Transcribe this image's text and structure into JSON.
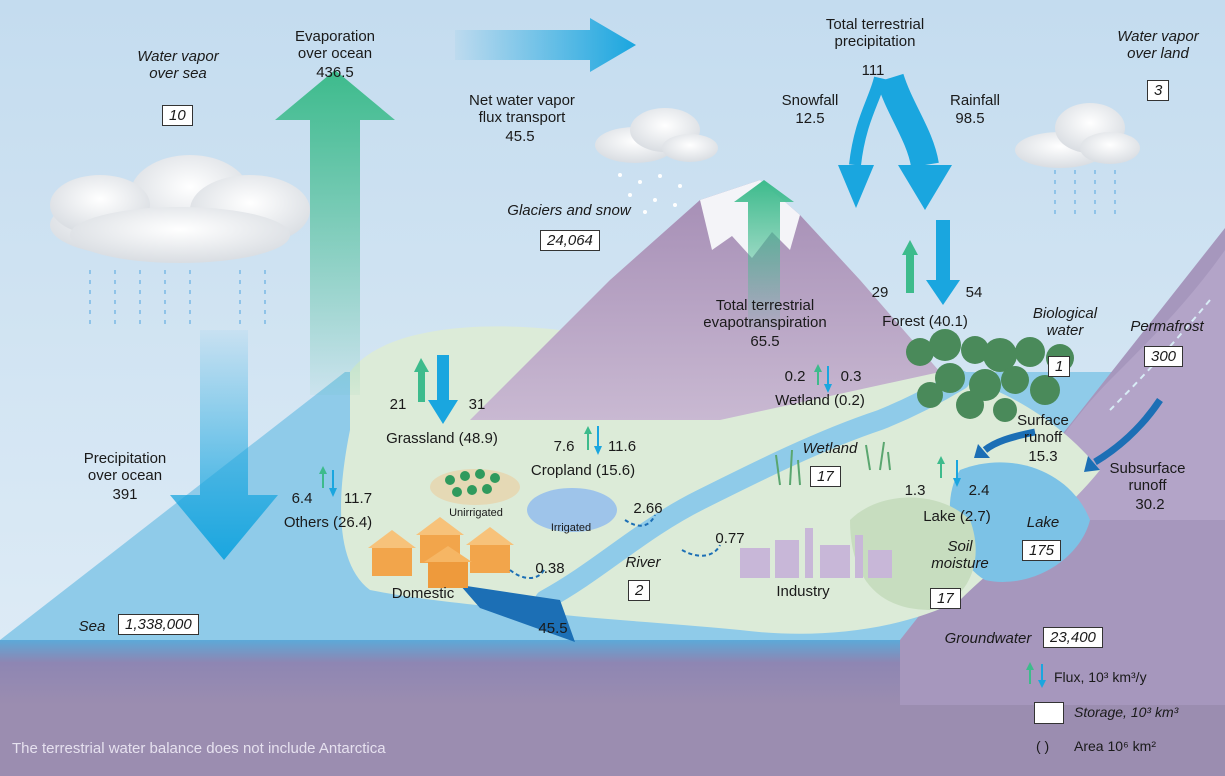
{
  "labels": {
    "vapor_sea": "Water vapor\nover sea",
    "vapor_sea_value": "10",
    "evap_ocean": "Evaporation\nover ocean",
    "evap_ocean_value": "436.5",
    "net_vapor": "Net water vapor\nflux transport",
    "net_vapor_value": "45.5",
    "total_precip": "Total terrestrial\nprecipitation",
    "total_precip_value": "111",
    "snowfall": "Snowfall",
    "snowfall_value": "12.5",
    "rainfall": "Rainfall",
    "rainfall_value": "98.5",
    "vapor_land": "Water vapor\nover land",
    "vapor_land_value": "3",
    "glaciers": "Glaciers and snow",
    "glaciers_value": "24,064",
    "forest_up": "29",
    "forest_down": "54",
    "forest": "Forest (40.1)",
    "biological": "Biological\nwater",
    "biological_value": "1",
    "permafrost": "Permafrost",
    "permafrost_value": "300",
    "total_evapo": "Total terrestrial\nevapotranspiration",
    "total_evapo_value": "65.5",
    "wetland_up": "0.2",
    "wetland_down": "0.3",
    "wetland": "Wetland (0.2)",
    "wetland_storage": "Wetland",
    "wetland_storage_value": "17",
    "surface_runoff": "Surface\nrunoff",
    "surface_runoff_value": "15.3",
    "subsurface_runoff": "Subsurface\nrunoff",
    "subsurface_runoff_value": "30.2",
    "lake_up": "1.3",
    "lake_down": "2.4",
    "lake": "Lake (2.7)",
    "lake_storage": "Lake",
    "lake_storage_value": "175",
    "soil": "Soil\nmoisture",
    "soil_value": "17",
    "groundwater": "Groundwater",
    "groundwater_value": "23,400",
    "grass_up": "21",
    "grass_down": "31",
    "grassland": "Grassland (48.9)",
    "crop_up": "7.6",
    "crop_down": "11.6",
    "cropland": "Cropland (15.6)",
    "others_up": "6.4",
    "others_down": "11.7",
    "others": "Others (26.4)",
    "unirrigated": "Unirrigated",
    "irrigated": "Irrigated",
    "irr_flow": "2.66",
    "ind_flow": "0.77",
    "dom_flow": "0.38",
    "river": "River",
    "river_value": "2",
    "river_flow": "45.5",
    "domestic": "Domestic",
    "industry": "Industry",
    "precip_ocean": "Precipitation\nover ocean",
    "precip_ocean_value": "391",
    "sea": "Sea",
    "sea_value": "1,338,000"
  },
  "legend": {
    "flux": "Flux, 10³ km³/y",
    "storage": "Storage, 10³ km³",
    "area_paren": "(   )",
    "area": "Area 10⁶ km²"
  },
  "footnote": "The terrestrial water balance does not include Antarctica",
  "colors": {
    "sky": "#cfe3f3",
    "sea": "#8fcbe9",
    "land": "#dcebd8",
    "mountain": "#b9a3c4",
    "cliff": "#a697bd",
    "ground_band": "#9b8db0",
    "arrow_blue": "#1aa6df",
    "arrow_green": "#3dbb8c",
    "river": "#1c6fb5"
  }
}
